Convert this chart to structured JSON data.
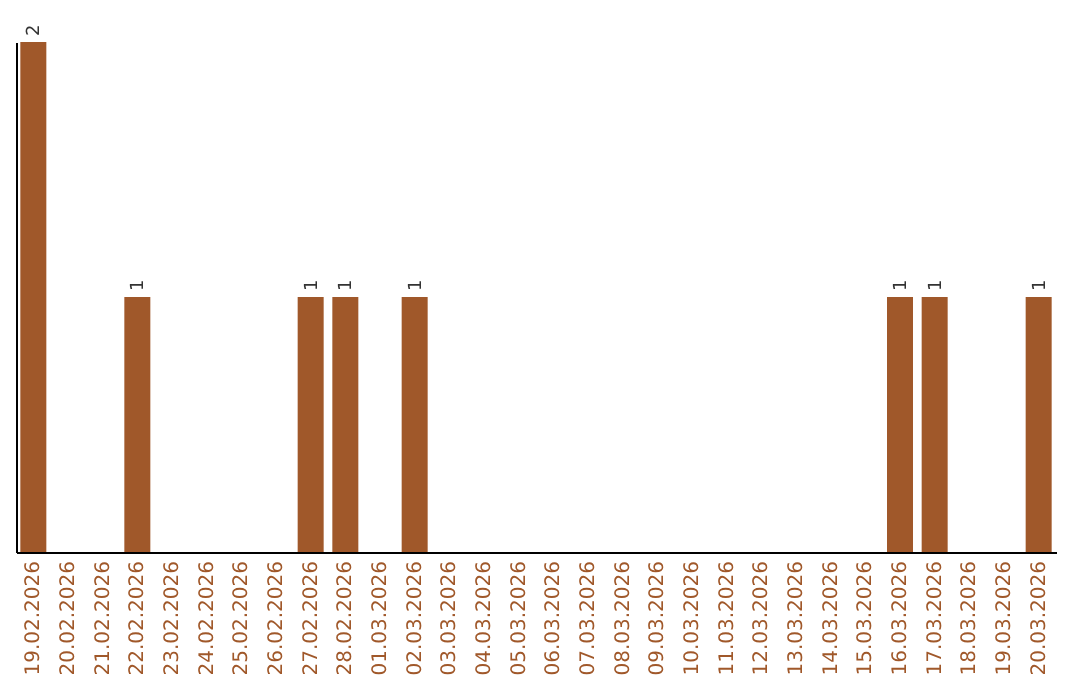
{
  "chart_data": {
    "type": "bar",
    "categories": [
      "19.02.2026",
      "20.02.2026",
      "21.02.2026",
      "22.02.2026",
      "23.02.2026",
      "24.02.2026",
      "25.02.2026",
      "26.02.2026",
      "27.02.2026",
      "28.02.2026",
      "01.03.2026",
      "02.03.2026",
      "03.03.2026",
      "04.03.2026",
      "05.03.2026",
      "06.03.2026",
      "07.03.2026",
      "08.03.2026",
      "09.03.2026",
      "10.03.2026",
      "11.03.2026",
      "12.03.2026",
      "13.03.2026",
      "14.03.2026",
      "15.03.2026",
      "16.03.2026",
      "17.03.2026",
      "18.03.2026",
      "19.03.2026",
      "20.03.2026"
    ],
    "values": [
      2,
      0,
      0,
      1,
      0,
      0,
      0,
      0,
      1,
      1,
      0,
      1,
      0,
      0,
      0,
      0,
      0,
      0,
      0,
      0,
      0,
      0,
      0,
      0,
      0,
      1,
      1,
      0,
      0,
      1
    ],
    "value_labels": [
      "2",
      null,
      null,
      "1",
      null,
      null,
      null,
      null,
      "1",
      "1",
      null,
      "1",
      null,
      null,
      null,
      null,
      null,
      null,
      null,
      null,
      null,
      null,
      null,
      null,
      null,
      "1",
      "1",
      null,
      null,
      "1"
    ],
    "color": "#a0582a",
    "tick_labels": "x"
  }
}
